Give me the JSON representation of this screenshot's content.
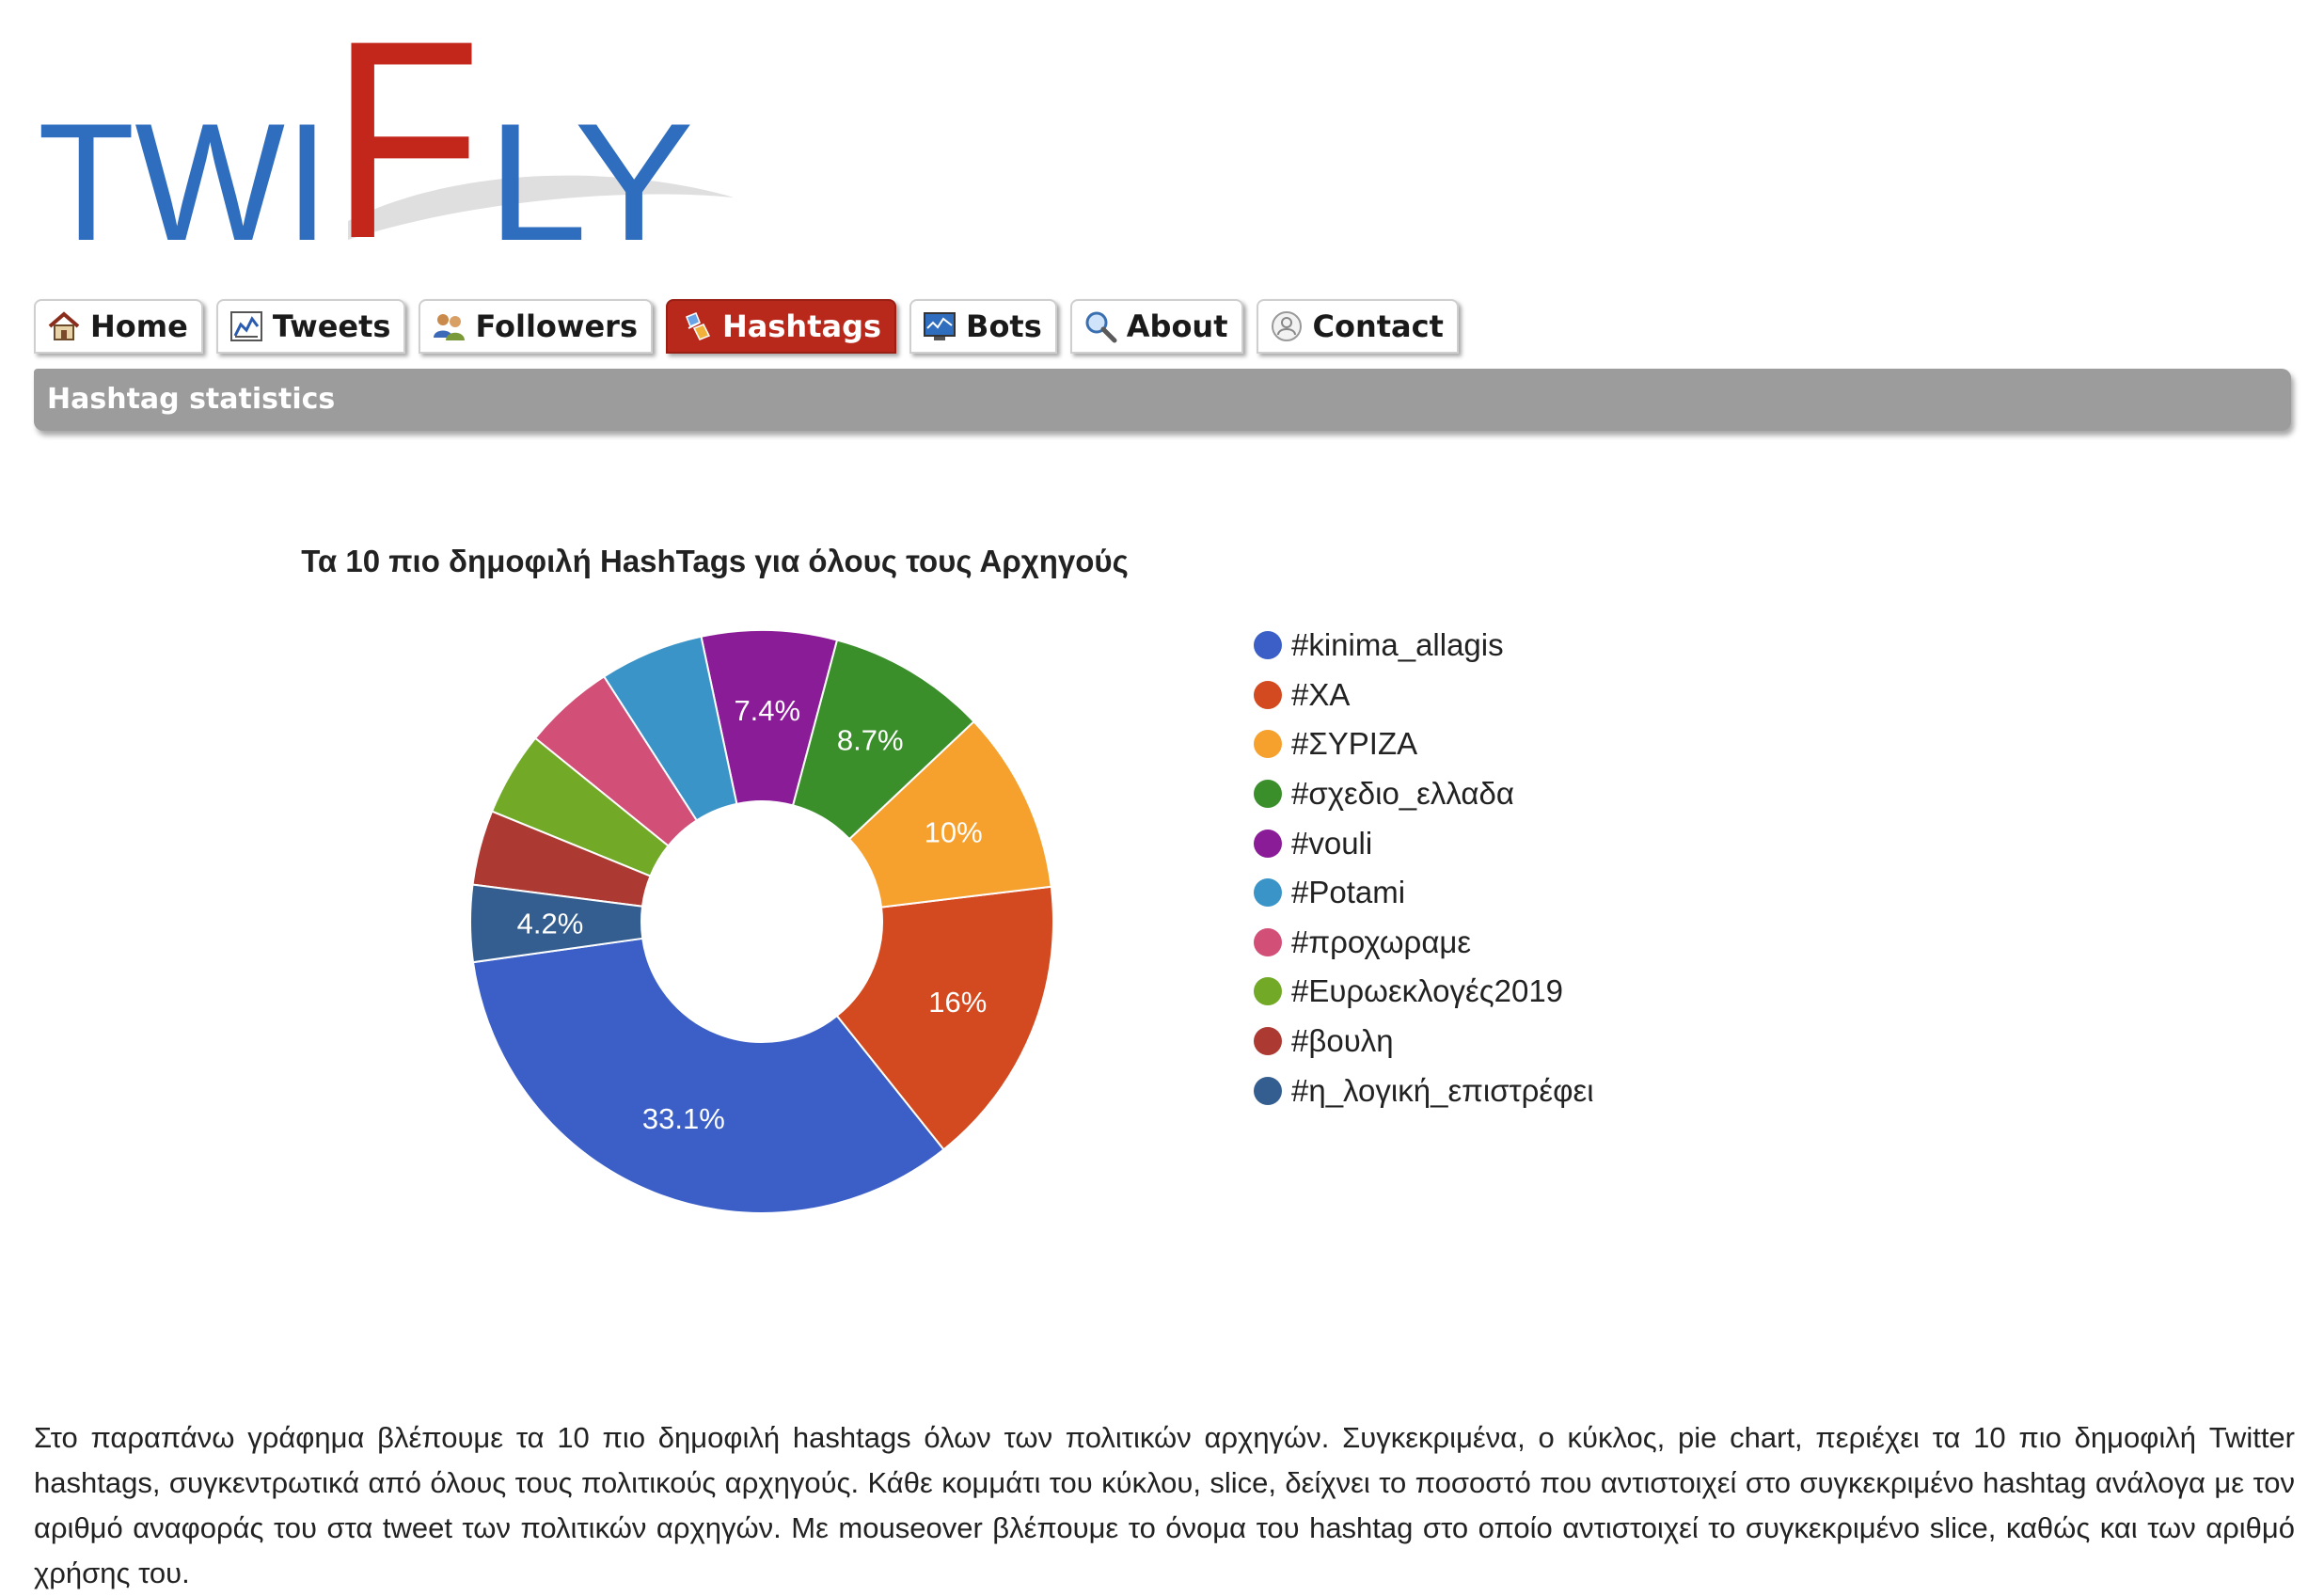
{
  "logo": {
    "text_left": "TWI",
    "text_accent": "F",
    "text_right": "LY",
    "blue": "#2f6ebf",
    "red": "#c3261b"
  },
  "nav": {
    "tabs": [
      {
        "label": "Home",
        "icon": "home-icon",
        "active": false
      },
      {
        "label": "Tweets",
        "icon": "chart-icon",
        "active": false
      },
      {
        "label": "Followers",
        "icon": "users-icon",
        "active": false
      },
      {
        "label": "Hashtags",
        "icon": "hashtag-icon",
        "active": true
      },
      {
        "label": "Bots",
        "icon": "monitor-icon",
        "active": false
      },
      {
        "label": "About",
        "icon": "magnifier-icon",
        "active": false
      },
      {
        "label": "Contact",
        "icon": "contact-icon",
        "active": false
      }
    ],
    "active_color": "#b8281b"
  },
  "section": {
    "title": "Hashtag statistics"
  },
  "chart_data": {
    "type": "pie",
    "donut": true,
    "title": "Τα 10 πιο δημοφιλή HashTags για όλους τους Αρχηγούς",
    "legend_position": "right",
    "categories": [
      "#kinima_allagis",
      "#ΧΑ",
      "#ΣΥΡΙΖΑ",
      "#σχεδιο_ελλαδα",
      "#vouli",
      "#Potami",
      "#προχωραμε",
      "#Ευρωεκλογές2019",
      "#βουλη",
      "#η_λογική_επιστρέφει"
    ],
    "values": [
      33.1,
      16,
      10,
      8.7,
      7.4,
      5.7,
      5.0,
      4.6,
      4.1,
      4.2
    ],
    "labels": [
      "33.1%",
      "16%",
      "10%",
      "8.7%",
      "7.4%",
      "",
      "",
      "",
      "",
      "4.2%"
    ],
    "colors": [
      "#3b5fc7",
      "#d34a20",
      "#f6a12e",
      "#3a8f2b",
      "#8b1c98",
      "#3b94c7",
      "#d24f78",
      "#72aa28",
      "#ac3a32",
      "#345e8f"
    ]
  },
  "description": "Στο παραπάνω γράφημα βλέπουμε τα 10 πιο δημοφιλή hashtags όλων των πολιτικών αρχηγών. Συγκεκριμένα, ο κύκλος, pie chart, περιέχει τα 10 πιο δημοφιλή Twitter hashtags, συγκεντρωτικά από όλους τους πολιτικούς αρχηγούς. Κάθε κομμάτι του κύκλου, slice, δείχνει το ποσοστό που αντιστοιχεί στο συγκεκριμένο hashtag ανάλογα με τον αριθμό αναφοράς του στα tweet των πολιτικών αρχηγών. Με mouseover βλέπουμε το όνομα του hashtag στο οποίο αντιστοιχεί το συγκεκριμένο slice, καθώς και των αριθμό χρήσης του."
}
